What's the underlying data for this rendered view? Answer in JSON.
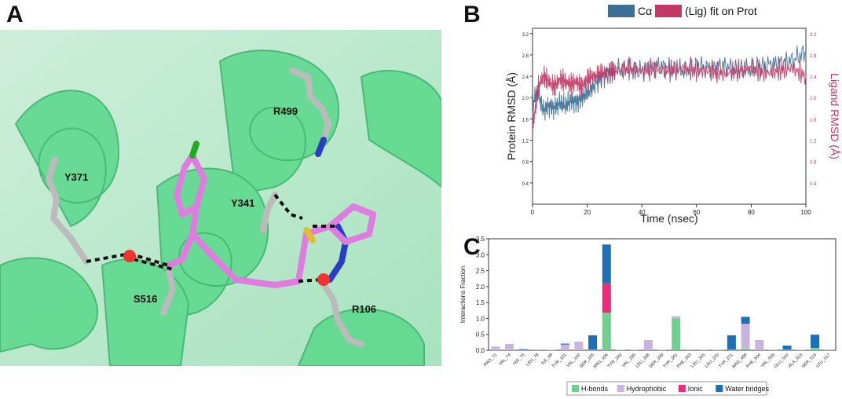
{
  "panels": {
    "a": "A",
    "b": "B",
    "c": "C"
  },
  "structure": {
    "residues": [
      "R499",
      "Y371",
      "Y341",
      "S516",
      "R106"
    ]
  },
  "colors": {
    "protein": "#5fd98f",
    "ligand": "#e07be0",
    "calpha": "#3d6f95",
    "lig": "#c23a63",
    "hbonds": "#6fcf8f",
    "hydrophobic": "#c8b4dc",
    "ionic": "#ee2a7b",
    "water": "#1f6fb5"
  },
  "chart_data": [
    {
      "type": "line",
      "legend": [
        "Cα",
        "(Lig) fit on Prot"
      ],
      "xlabel": "Time (nsec)",
      "ylabel": "Protein RMSD (Å)",
      "ylabel2": "Ligand RMSD (Å)",
      "xlim": [
        0,
        100
      ],
      "ylim": [
        0,
        3.3
      ],
      "xticks": [
        0,
        20,
        40,
        60,
        80,
        100
      ],
      "yticks": [
        0.4,
        0.8,
        1.2,
        1.6,
        2.0,
        2.4,
        2.8,
        3.2
      ],
      "series": [
        {
          "name": "Cα",
          "x": [
            0,
            2,
            4,
            6,
            8,
            10,
            12,
            14,
            16,
            18,
            20,
            22,
            25,
            28,
            30,
            35,
            40,
            45,
            50,
            55,
            60,
            65,
            70,
            75,
            80,
            85,
            90,
            95,
            100
          ],
          "y": [
            1.9,
            2.1,
            1.75,
            1.85,
            1.8,
            1.9,
            1.85,
            1.95,
            1.9,
            2.0,
            2.1,
            2.2,
            2.35,
            2.45,
            2.5,
            2.55,
            2.5,
            2.6,
            2.55,
            2.5,
            2.6,
            2.55,
            2.6,
            2.5,
            2.55,
            2.6,
            2.65,
            2.7,
            2.85
          ]
        },
        {
          "name": "(Lig) fit on Prot",
          "x": [
            0,
            2,
            4,
            6,
            8,
            10,
            12,
            14,
            16,
            18,
            20,
            22,
            25,
            28,
            30,
            35,
            40,
            45,
            50,
            55,
            60,
            65,
            70,
            75,
            80,
            85,
            90,
            95,
            100
          ],
          "y": [
            1.4,
            2.2,
            2.4,
            2.3,
            2.2,
            2.35,
            2.3,
            2.25,
            2.3,
            2.2,
            2.35,
            2.4,
            2.45,
            2.5,
            2.5,
            2.55,
            2.5,
            2.55,
            2.5,
            2.55,
            2.5,
            2.5,
            2.45,
            2.5,
            2.55,
            2.45,
            2.5,
            2.55,
            2.4
          ]
        }
      ]
    },
    {
      "type": "bar",
      "ylabel": "Interactions Fraction",
      "ylim": [
        0,
        3.5
      ],
      "yticks": [
        0.0,
        0.5,
        1.0,
        1.5,
        2.0,
        2.5,
        3.0,
        3.5
      ],
      "categories": [
        "PRO_71",
        "VAL_74",
        "HIS_75",
        "LEU_78",
        "ILE_98",
        "TYR_101",
        "VAL_102",
        "SER_105",
        "ARG_106",
        "TYR_334",
        "VAL_335",
        "LEU_338",
        "SER_339",
        "TYR_341",
        "PHE_343",
        "LEU_345",
        "LEU_370",
        "TYR_371",
        "ARG_499",
        "PHE_504",
        "VAL_509",
        "GLU_510",
        "ALA_513",
        "SER_516",
        "LEU_517"
      ],
      "series": [
        {
          "name": "H-bonds",
          "values": [
            0,
            0,
            0,
            0,
            0,
            0,
            0,
            0,
            1.18,
            0,
            0,
            0,
            0,
            1.0,
            0,
            0,
            0,
            0,
            0.05,
            0,
            0,
            0,
            0,
            0.05,
            0
          ]
        },
        {
          "name": "Hydrophobic",
          "values": [
            0.12,
            0.2,
            0.02,
            0.03,
            0.02,
            0.18,
            0.27,
            0.02,
            0,
            0.01,
            0.01,
            0.32,
            0.02,
            0.07,
            0.03,
            0.02,
            0.01,
            0.02,
            0.78,
            0.32,
            0.02,
            0.02,
            0.02,
            0.02,
            0.03
          ]
        },
        {
          "name": "Ionic",
          "values": [
            0,
            0,
            0,
            0,
            0,
            0,
            0,
            0,
            0.92,
            0,
            0,
            0,
            0,
            0,
            0,
            0,
            0,
            0,
            0,
            0,
            0,
            0,
            0,
            0,
            0
          ]
        },
        {
          "name": "Water bridges",
          "values": [
            0,
            0,
            0.02,
            0,
            0,
            0.03,
            0,
            0.45,
            1.22,
            0,
            0,
            0,
            0,
            0,
            0,
            0,
            0,
            0.45,
            0.22,
            0,
            0,
            0.13,
            0,
            0.42,
            0
          ]
        }
      ]
    }
  ]
}
